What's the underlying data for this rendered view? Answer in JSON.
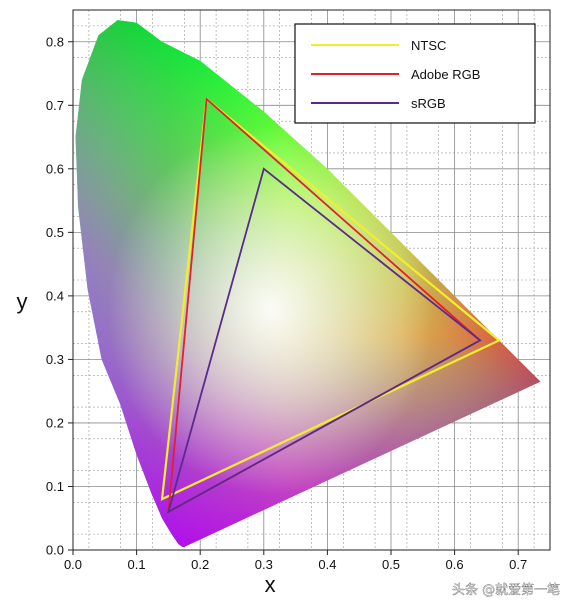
{
  "chart_data": {
    "type": "line",
    "xlabel": "x",
    "ylabel": "y",
    "xlim": [
      0.0,
      0.75
    ],
    "ylim": [
      0.0,
      0.85
    ],
    "x_ticks": [
      "0.0",
      "0.1",
      "0.2",
      "0.3",
      "0.4",
      "0.5",
      "0.6",
      "0.7"
    ],
    "y_ticks": [
      "0.0",
      "0.1",
      "0.2",
      "0.3",
      "0.4",
      "0.5",
      "0.6",
      "0.7",
      "0.8"
    ],
    "grid": true,
    "minor_grid": true,
    "legend_position": "top-right",
    "spectral_locus": [
      [
        0.175,
        0.005
      ],
      [
        0.172,
        0.005
      ],
      [
        0.166,
        0.009
      ],
      [
        0.155,
        0.025
      ],
      [
        0.14,
        0.05
      ],
      [
        0.123,
        0.09
      ],
      [
        0.1,
        0.15
      ],
      [
        0.074,
        0.23
      ],
      [
        0.045,
        0.3
      ],
      [
        0.023,
        0.41
      ],
      [
        0.008,
        0.54
      ],
      [
        0.004,
        0.65
      ],
      [
        0.014,
        0.74
      ],
      [
        0.04,
        0.81
      ],
      [
        0.07,
        0.834
      ],
      [
        0.1,
        0.83
      ],
      [
        0.14,
        0.8
      ],
      [
        0.2,
        0.77
      ],
      [
        0.3,
        0.69
      ],
      [
        0.4,
        0.6
      ],
      [
        0.5,
        0.5
      ],
      [
        0.6,
        0.4
      ],
      [
        0.68,
        0.32
      ],
      [
        0.735,
        0.265
      ]
    ],
    "series": [
      {
        "name": "NTSC",
        "color": "#f2ee2e",
        "points": [
          [
            0.67,
            0.33
          ],
          [
            0.21,
            0.71
          ],
          [
            0.14,
            0.08
          ]
        ]
      },
      {
        "name": "Adobe RGB",
        "color": "#e0202e",
        "points": [
          [
            0.64,
            0.33
          ],
          [
            0.21,
            0.71
          ],
          [
            0.15,
            0.06
          ]
        ]
      },
      {
        "name": "sRGB",
        "color": "#5a2a8c",
        "points": [
          [
            0.64,
            0.33
          ],
          [
            0.3,
            0.6
          ],
          [
            0.15,
            0.06
          ]
        ]
      }
    ]
  },
  "watermark": "头条 @就爱第一笔"
}
